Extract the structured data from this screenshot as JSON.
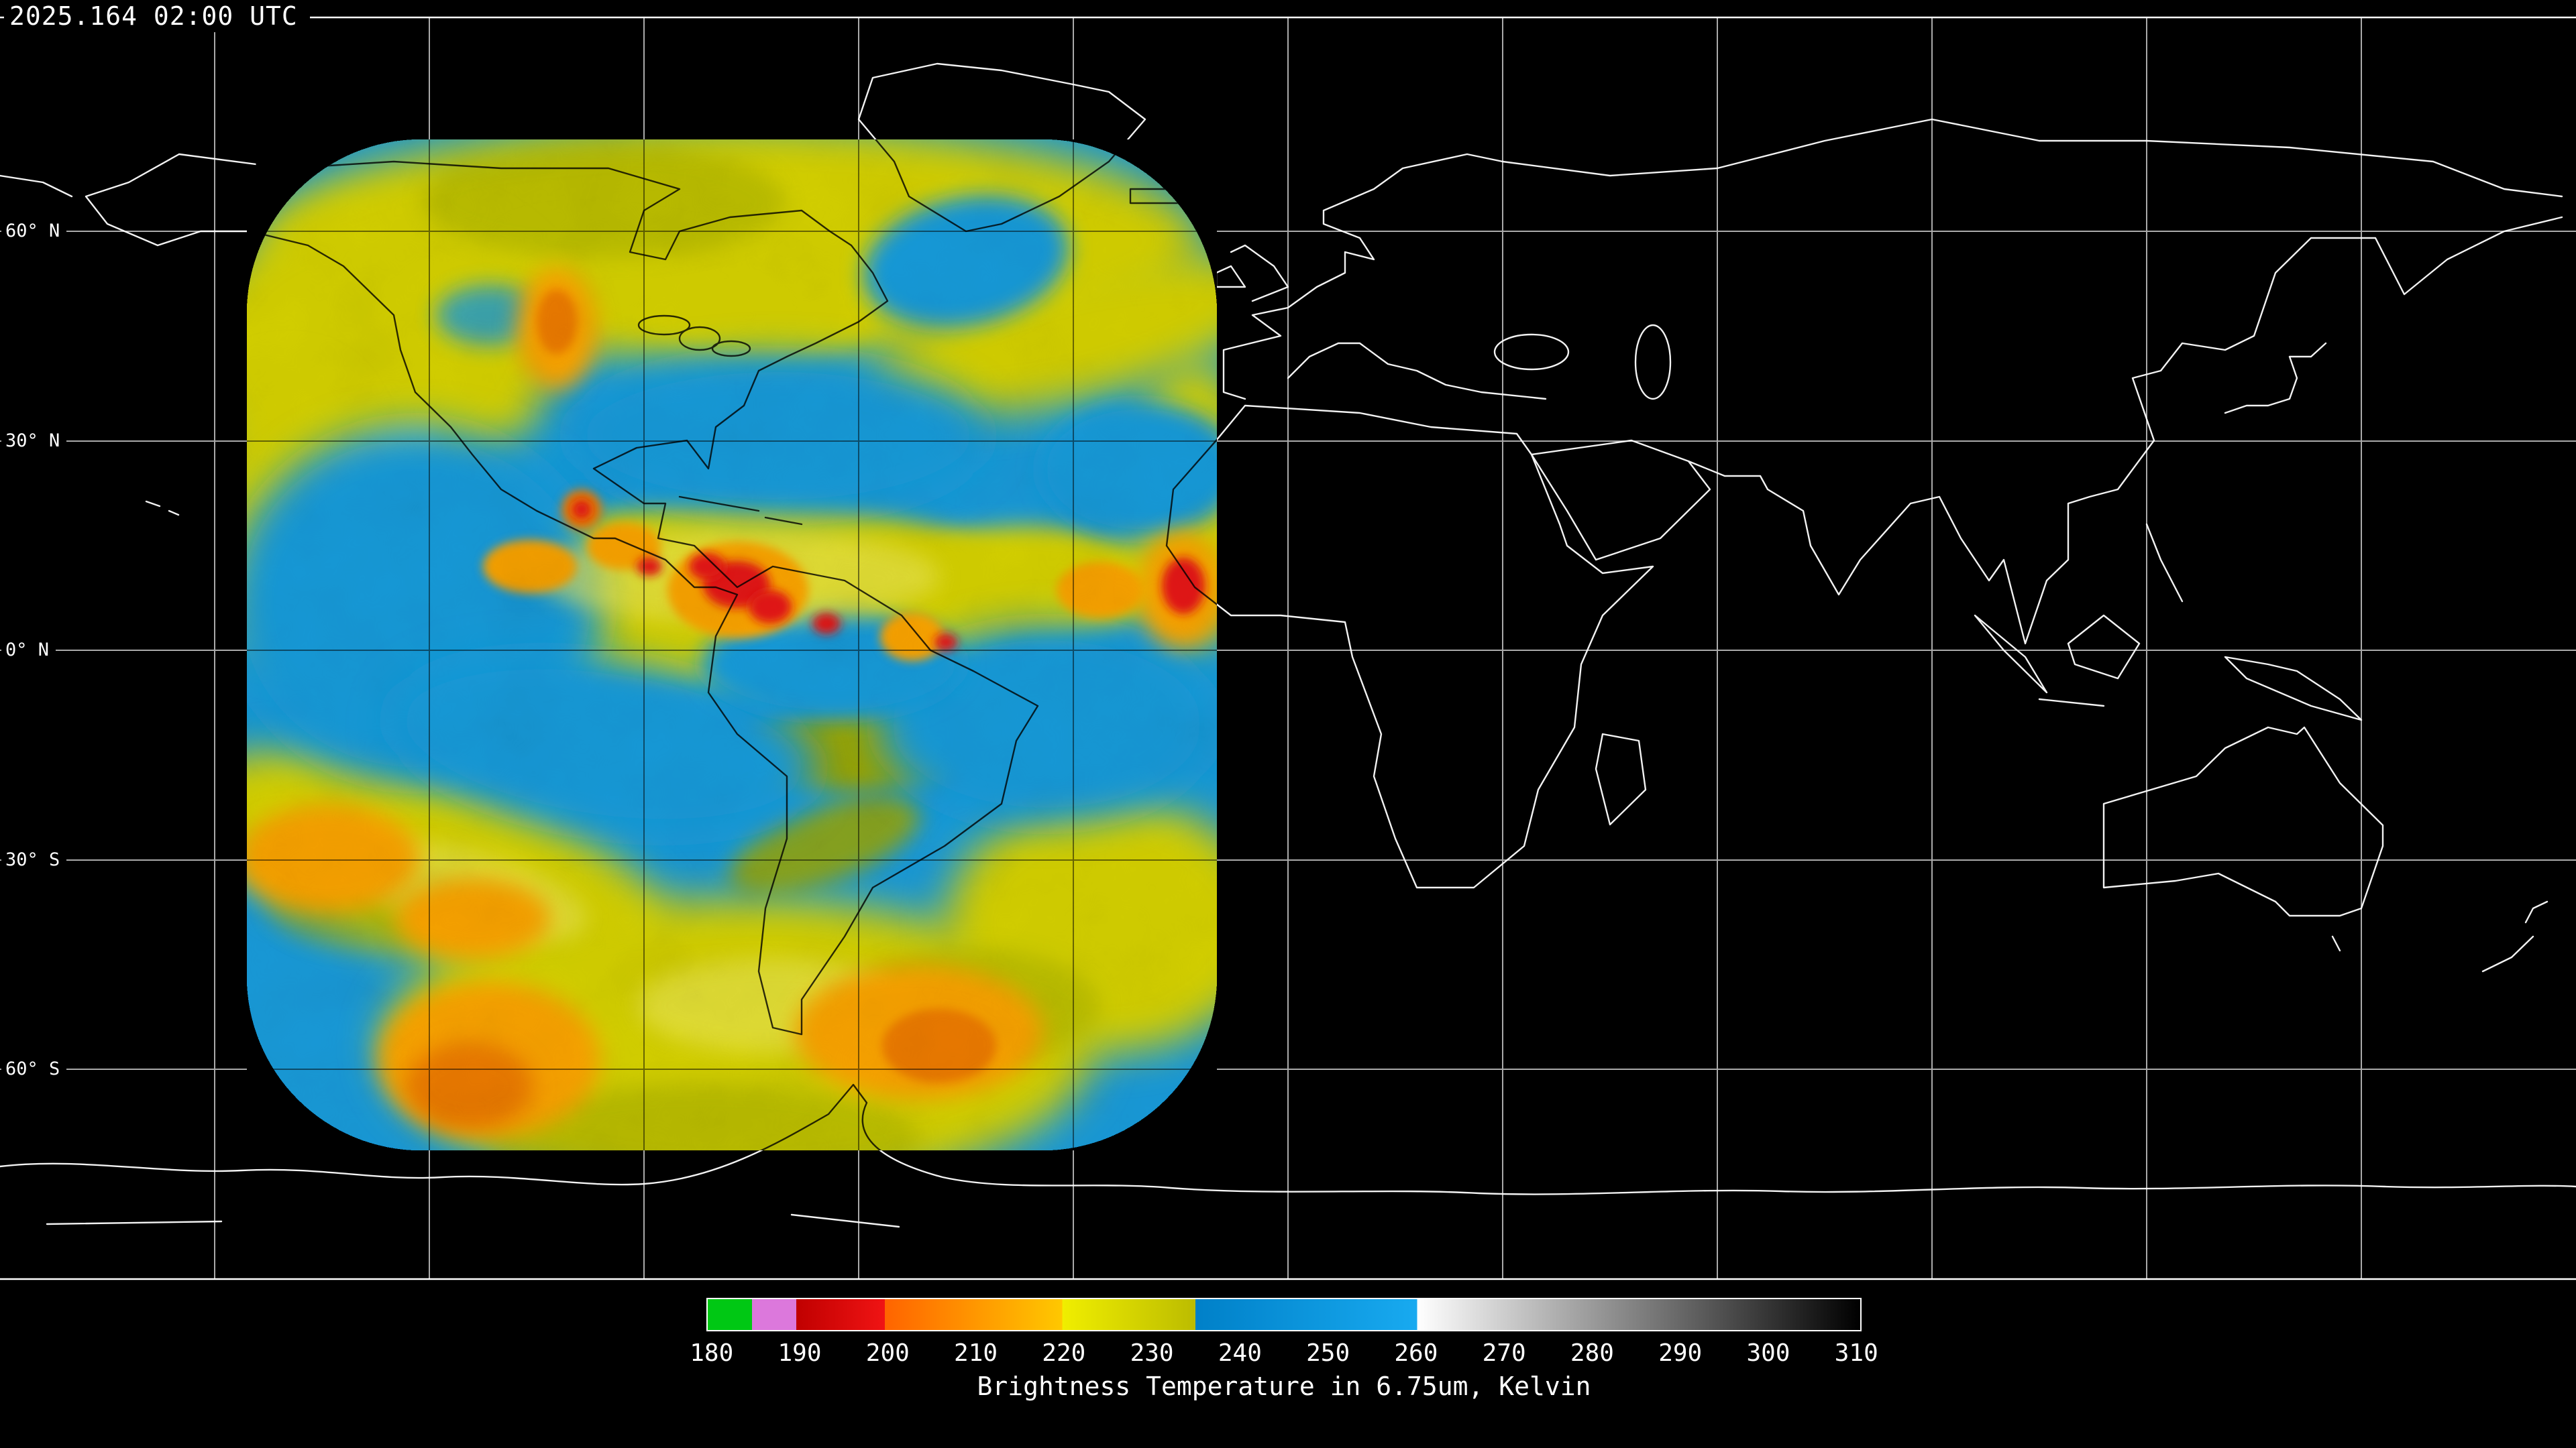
{
  "header": {
    "timestamp": "2025.164 02:00 UTC"
  },
  "map": {
    "lat_labels": [
      "60° N",
      "30° N",
      "0° N",
      "30° S",
      "60° S"
    ],
    "grid": {
      "lon_spacing_deg": 30,
      "lat_spacing_deg": 30
    }
  },
  "colorbar": {
    "title": "Brightness Temperature in 6.75um, Kelvin",
    "min": 180,
    "max": 310,
    "ticks": [
      "180",
      "190",
      "200",
      "210",
      "220",
      "230",
      "240",
      "250",
      "260",
      "270",
      "280",
      "290",
      "300",
      "310"
    ],
    "segments": [
      {
        "name": "green",
        "from": 180,
        "to": 185,
        "color_start": "#00c814",
        "color_end": "#00c814"
      },
      {
        "name": "magenta",
        "from": 185,
        "to": 190,
        "color_start": "#dc78dc",
        "color_end": "#dc78dc"
      },
      {
        "name": "red",
        "from": 190,
        "to": 200,
        "color_start": "#c00000",
        "color_end": "#f01414"
      },
      {
        "name": "orange",
        "from": 200,
        "to": 220,
        "color_start": "#ff6400",
        "color_end": "#ffc800"
      },
      {
        "name": "yellow",
        "from": 220,
        "to": 235,
        "color_start": "#f0ee00",
        "color_end": "#bcbc00"
      },
      {
        "name": "blue",
        "from": 235,
        "to": 260,
        "color_start": "#0080c8",
        "color_end": "#18aaf0"
      },
      {
        "name": "grayscale",
        "from": 260,
        "to": 310,
        "color_start": "#ffffff",
        "color_end": "#000000"
      }
    ]
  },
  "palette": {
    "background": "#000000",
    "coast_outside": "#ffffff",
    "coast_inside": "#000000",
    "grid_outside": "#bdbdbd",
    "grid_inside": "#000000",
    "swath_blue": "#1898d6",
    "swath_yellow": "#d2ce00",
    "swath_olive": "#9aa400",
    "swath_pale": "#e8e455",
    "swath_orange": "#f5a000",
    "swath_deep_orange": "#e87800",
    "swath_red": "#e01414"
  }
}
